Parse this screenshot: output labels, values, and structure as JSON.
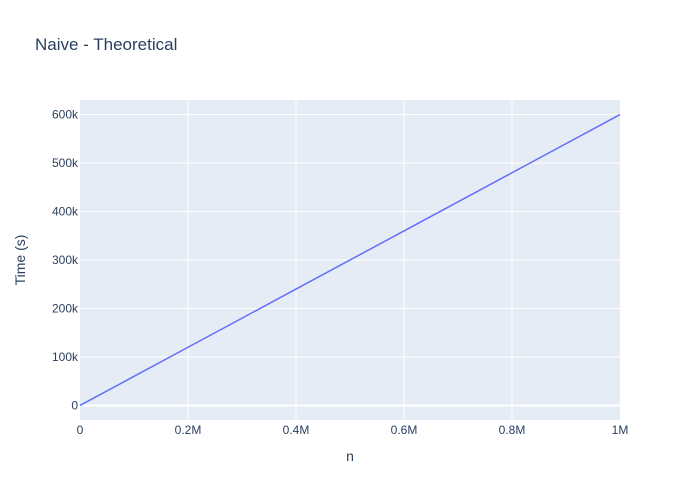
{
  "chart_data": {
    "type": "line",
    "title": "Naive - Theoretical",
    "xlabel": "n",
    "ylabel": "Time (s)",
    "xlim": [
      0,
      1000000
    ],
    "ylim": [
      -30000,
      630000
    ],
    "x_ticks": [
      {
        "value": 0,
        "label": "0"
      },
      {
        "value": 200000,
        "label": "0.2M"
      },
      {
        "value": 400000,
        "label": "0.4M"
      },
      {
        "value": 600000,
        "label": "0.6M"
      },
      {
        "value": 800000,
        "label": "0.8M"
      },
      {
        "value": 1000000,
        "label": "1M"
      }
    ],
    "y_ticks": [
      {
        "value": 0,
        "label": "0"
      },
      {
        "value": 100000,
        "label": "100k"
      },
      {
        "value": 200000,
        "label": "200k"
      },
      {
        "value": 300000,
        "label": "300k"
      },
      {
        "value": 400000,
        "label": "400k"
      },
      {
        "value": 500000,
        "label": "500k"
      },
      {
        "value": 600000,
        "label": "600k"
      }
    ],
    "grid": true,
    "series": [
      {
        "color": "#636efa",
        "x": [
          0,
          200000,
          400000,
          600000,
          800000,
          1000000
        ],
        "y": [
          0,
          120000,
          240000,
          360000,
          480000,
          600000
        ]
      }
    ]
  },
  "colors": {
    "plot_background": "#e5ecf6",
    "grid": "#ffffff",
    "text": "#2a3f5f"
  }
}
